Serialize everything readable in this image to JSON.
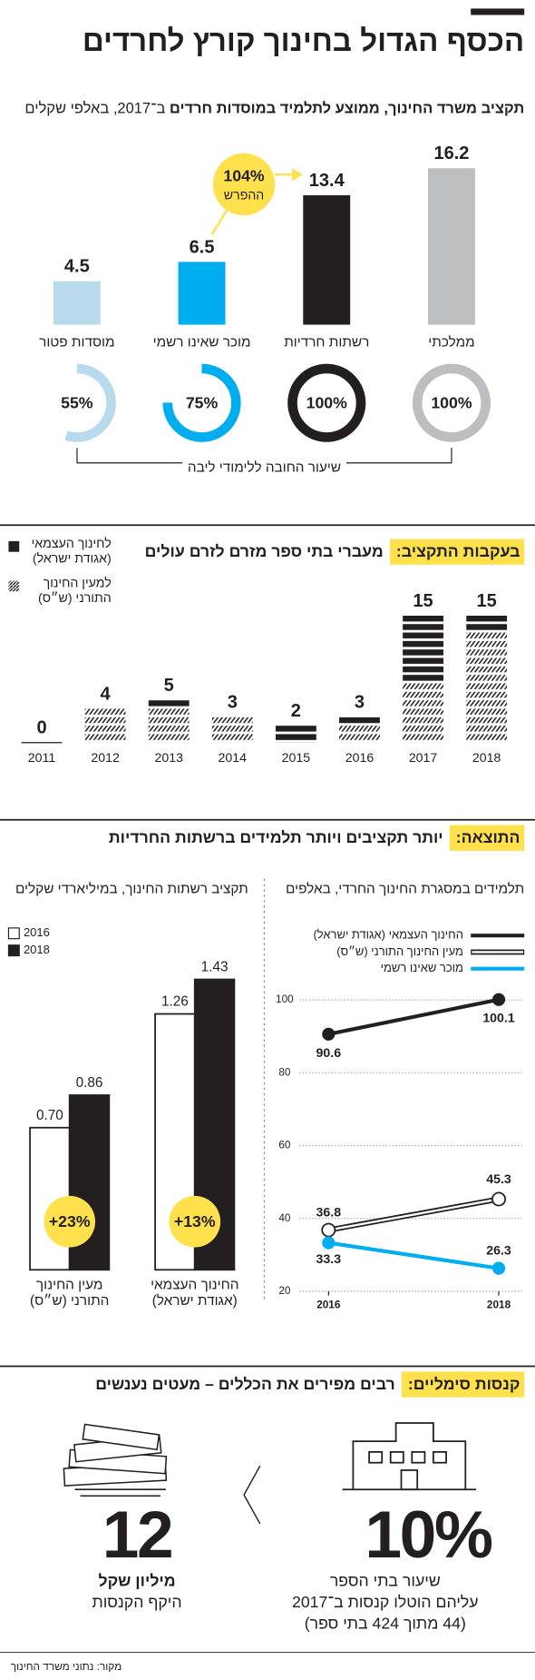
{
  "title": "הכסף הגדול בחינוך קורץ לחרדים",
  "source": "מקור: נתוני משרד החינוך",
  "result": {
    "tag": "התוצאה:",
    "title": "יותר תקציבים ויותר תלמידים ברשתות החרדיות"
  },
  "fines": {
    "tag": "קנסות סימליים:",
    "title": "רבים מפירים את הכללים – מעטים נענשים",
    "schools": {
      "value": "10%",
      "lines": [
        "שיעור בתי הספר",
        "עליהם הוטלו קנסות ב־2017",
        "(44 מתוך 424 בתי ספר)"
      ]
    },
    "amount": {
      "value": "12",
      "unit": "מיליון שקל",
      "text": "היקף הקנסות"
    }
  },
  "chart_data": [
    {
      "type": "bar",
      "title": "תקציב משרד החינוך, ממוצע לתלמיד במוסדות חרדים",
      "subtitle": "ב־2017, באלפי שקלים",
      "categories": [
        "ממלכתי",
        "רשתות חרדיות",
        "מוכר שאינו רשמי",
        "מוסדות פטור"
      ],
      "values": [
        16.2,
        13.4,
        6.5,
        4.5
      ],
      "colors": [
        "#bcbec0",
        "#231f20",
        "#00aeef",
        "#b9d9ec"
      ],
      "annotation": {
        "label": "104%",
        "text": "ההפרש"
      }
    },
    {
      "type": "donut",
      "title": "שיעור החובה ללימודי ליבה",
      "categories": [
        "ממלכתי",
        "רשתות חרדיות",
        "מוכר שאינו רשמי",
        "מוסדות פטור"
      ],
      "values": [
        100,
        100,
        75,
        55
      ],
      "value_labels": [
        "100%",
        "100%",
        "75%",
        "55%"
      ],
      "colors": [
        "#bcbec0",
        "#231f20",
        "#00aeef",
        "#b9d9ec"
      ]
    },
    {
      "type": "stacked_bar",
      "tag": "בעקבות התקציב:",
      "title": "מעברי בתי ספר מזרם לזרם עולים",
      "categories": [
        "2011",
        "2012",
        "2013",
        "2014",
        "2015",
        "2016",
        "2017",
        "2018"
      ],
      "series": [
        {
          "name": "לחינוך העצמאי (אגודת ישראל)",
          "color": "#231f20",
          "pattern": "solid",
          "values": [
            0,
            0,
            1,
            0,
            2,
            1,
            8,
            2
          ]
        },
        {
          "name": "למעין החינוך התורני (ש״ס)",
          "color": "#231f20",
          "pattern": "hatched",
          "values": [
            0,
            4,
            4,
            3,
            0,
            2,
            7,
            13
          ]
        }
      ],
      "totals": [
        0,
        4,
        5,
        3,
        2,
        3,
        15,
        15
      ]
    },
    {
      "type": "grouped_bar",
      "title": "תקציב רשתות החינוך, במיליארדי שקלים",
      "categories": [
        "החינוך העצמאי (אגודת ישראל)",
        "מעין החינוך התורני (ש״ס)"
      ],
      "series": [
        {
          "name": "2016",
          "color": "#ffffff",
          "values": [
            1.26,
            0.7
          ],
          "value_labels": [
            "1.26",
            "0.70"
          ]
        },
        {
          "name": "2018",
          "color": "#231f20",
          "values": [
            1.43,
            0.86
          ]
        }
      ],
      "change_labels": [
        "+13%",
        "+23%"
      ],
      "annotation_color": "#ffe14d"
    },
    {
      "type": "line",
      "title": "תלמידים במסגרת החינוך החרדי, באלפים",
      "x": [
        2016,
        2018
      ],
      "series": [
        {
          "name": "החינוך העצמאי (אגודת ישראל)",
          "color": "#231f20",
          "style": "solid",
          "values": [
            90.6,
            100.1
          ]
        },
        {
          "name": "מעין החינוך התורני (ש״ס)",
          "color": "#231f20",
          "style": "double",
          "values": [
            36.8,
            45.3
          ]
        },
        {
          "name": "מוכר שאינו רשמי",
          "color": "#00aeef",
          "style": "solid",
          "values": [
            33.3,
            26.3
          ]
        }
      ],
      "xlim": [
        2015.66,
        2018.3
      ],
      "xticks": [
        2016,
        2018
      ],
      "ylim": [
        20,
        102.4
      ],
      "yticks": [
        20,
        40,
        60,
        80,
        100
      ],
      "grid": true
    }
  ]
}
